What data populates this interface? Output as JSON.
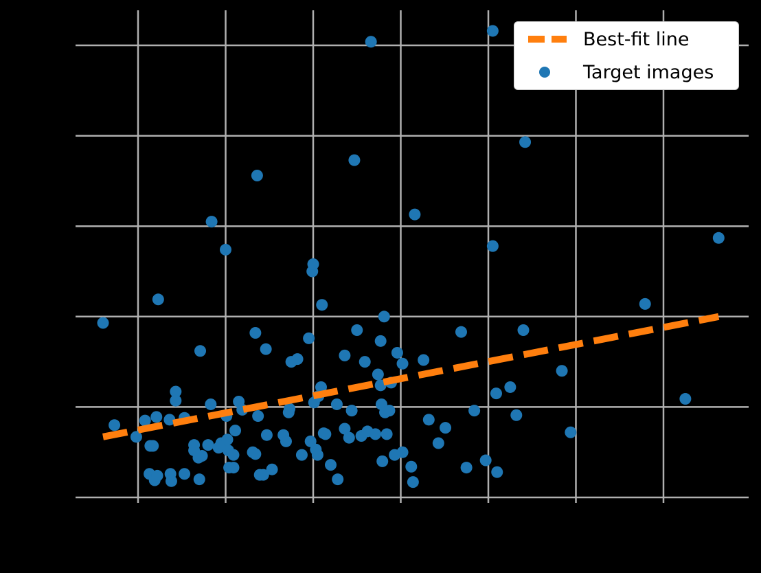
{
  "chart_data": {
    "type": "scatter",
    "title": "",
    "xlabel": "",
    "ylabel": "",
    "note": "Tick labels are rendered black-on-black (not visible); values below are in gridline-index units (x gridlines = 1..7, y gridlines = 0..5).",
    "xlim": [
      0.28,
      7.96
    ],
    "ylim": [
      -0.1,
      5.5
    ],
    "x_gridlines": [
      1,
      2,
      3,
      4,
      5,
      6,
      7
    ],
    "y_gridlines": [
      0,
      1,
      2,
      3,
      4,
      5
    ],
    "grid": true,
    "legend_position": "upper right",
    "colors": {
      "background": "#000000",
      "grid": "#b0b0b0",
      "points": "#1f77b4",
      "fit": "#ff7f0e"
    },
    "series": [
      {
        "name": "Target images",
        "kind": "scatter",
        "points": [
          [
            0.6,
            1.93
          ],
          [
            0.73,
            0.8
          ],
          [
            0.98,
            0.67
          ],
          [
            1.08,
            0.85
          ],
          [
            1.14,
            0.57
          ],
          [
            1.13,
            0.26
          ],
          [
            1.17,
            0.57
          ],
          [
            1.19,
            0.19
          ],
          [
            1.23,
            2.19
          ],
          [
            1.21,
            0.89
          ],
          [
            1.22,
            0.24
          ],
          [
            1.36,
            0.86
          ],
          [
            1.37,
            0.26
          ],
          [
            1.38,
            0.18
          ],
          [
            1.43,
            1.17
          ],
          [
            1.43,
            1.07
          ],
          [
            1.53,
            0.88
          ],
          [
            1.53,
            0.26
          ],
          [
            1.64,
            0.58
          ],
          [
            1.64,
            0.52
          ],
          [
            1.69,
            0.44
          ],
          [
            1.7,
            0.2
          ],
          [
            1.71,
            1.62
          ],
          [
            1.73,
            0.46
          ],
          [
            1.8,
            0.58
          ],
          [
            1.83,
            1.03
          ],
          [
            1.84,
            3.05
          ],
          [
            1.92,
            0.55
          ],
          [
            1.95,
            0.6
          ],
          [
            2.0,
            2.74
          ],
          [
            2.01,
            0.9
          ],
          [
            2.02,
            0.64
          ],
          [
            2.03,
            0.52
          ],
          [
            2.04,
            0.33
          ],
          [
            2.09,
            0.33
          ],
          [
            2.09,
            0.47
          ],
          [
            2.11,
            0.74
          ],
          [
            2.15,
            1.06
          ],
          [
            2.19,
            0.97
          ],
          [
            2.31,
            0.5
          ],
          [
            2.34,
            0.48
          ],
          [
            2.34,
            1.82
          ],
          [
            2.36,
            3.56
          ],
          [
            2.37,
            0.9
          ],
          [
            2.39,
            0.25
          ],
          [
            2.43,
            0.25
          ],
          [
            2.46,
            1.64
          ],
          [
            2.47,
            0.69
          ],
          [
            2.53,
            0.31
          ],
          [
            2.66,
            0.69
          ],
          [
            2.69,
            0.62
          ],
          [
            2.72,
            0.94
          ],
          [
            2.73,
            0.98
          ],
          [
            2.75,
            1.5
          ],
          [
            2.82,
            1.53
          ],
          [
            2.87,
            0.47
          ],
          [
            2.95,
            1.76
          ],
          [
            2.97,
            0.62
          ],
          [
            2.99,
            2.5
          ],
          [
            3.0,
            2.58
          ],
          [
            3.01,
            1.05
          ],
          [
            3.03,
            0.53
          ],
          [
            3.05,
            0.47
          ],
          [
            3.06,
            1.12
          ],
          [
            3.09,
            1.22
          ],
          [
            3.12,
            0.71
          ],
          [
            3.1,
            2.13
          ],
          [
            3.14,
            0.7
          ],
          [
            3.2,
            0.36
          ],
          [
            3.27,
            1.03
          ],
          [
            3.28,
            0.2
          ],
          [
            3.36,
            1.57
          ],
          [
            3.36,
            0.76
          ],
          [
            3.41,
            0.66
          ],
          [
            3.44,
            0.96
          ],
          [
            3.47,
            3.73
          ],
          [
            3.5,
            1.85
          ],
          [
            3.55,
            0.68
          ],
          [
            3.59,
            1.5
          ],
          [
            3.62,
            0.73
          ],
          [
            3.66,
            5.04
          ],
          [
            3.71,
            0.7
          ],
          [
            3.74,
            1.36
          ],
          [
            3.77,
            1.73
          ],
          [
            3.77,
            1.24
          ],
          [
            3.78,
            1.03
          ],
          [
            3.79,
            0.4
          ],
          [
            3.81,
            2.0
          ],
          [
            3.82,
            0.94
          ],
          [
            3.84,
            0.7
          ],
          [
            3.87,
            0.96
          ],
          [
            3.89,
            1.27
          ],
          [
            3.93,
            0.47
          ],
          [
            3.96,
            1.6
          ],
          [
            4.02,
            1.48
          ],
          [
            4.02,
            0.5
          ],
          [
            4.12,
            0.34
          ],
          [
            4.14,
            0.17
          ],
          [
            4.16,
            3.13
          ],
          [
            4.26,
            1.52
          ],
          [
            4.32,
            0.86
          ],
          [
            4.43,
            0.6
          ],
          [
            4.51,
            0.77
          ],
          [
            4.69,
            1.83
          ],
          [
            4.75,
            0.33
          ],
          [
            4.84,
            0.96
          ],
          [
            4.97,
            0.41
          ],
          [
            5.05,
            5.16
          ],
          [
            5.05,
            2.78
          ],
          [
            5.09,
            1.15
          ],
          [
            5.1,
            0.28
          ],
          [
            5.25,
            1.22
          ],
          [
            5.32,
            0.91
          ],
          [
            5.4,
            1.85
          ],
          [
            5.42,
            3.93
          ],
          [
            5.84,
            1.4
          ],
          [
            5.94,
            0.72
          ],
          [
            6.79,
            2.14
          ],
          [
            7.25,
            1.09
          ],
          [
            7.63,
            2.87
          ]
        ]
      },
      {
        "name": "Best-fit line",
        "kind": "line",
        "style": "dashed",
        "x": [
          0.6,
          7.63
        ],
        "y": [
          0.67,
          2.0
        ]
      }
    ]
  },
  "legend": {
    "items": [
      {
        "label": "Best-fit line",
        "marker": "dashed-line",
        "color": "#ff7f0e"
      },
      {
        "label": "Target images",
        "marker": "circle",
        "color": "#1f77b4"
      }
    ]
  }
}
